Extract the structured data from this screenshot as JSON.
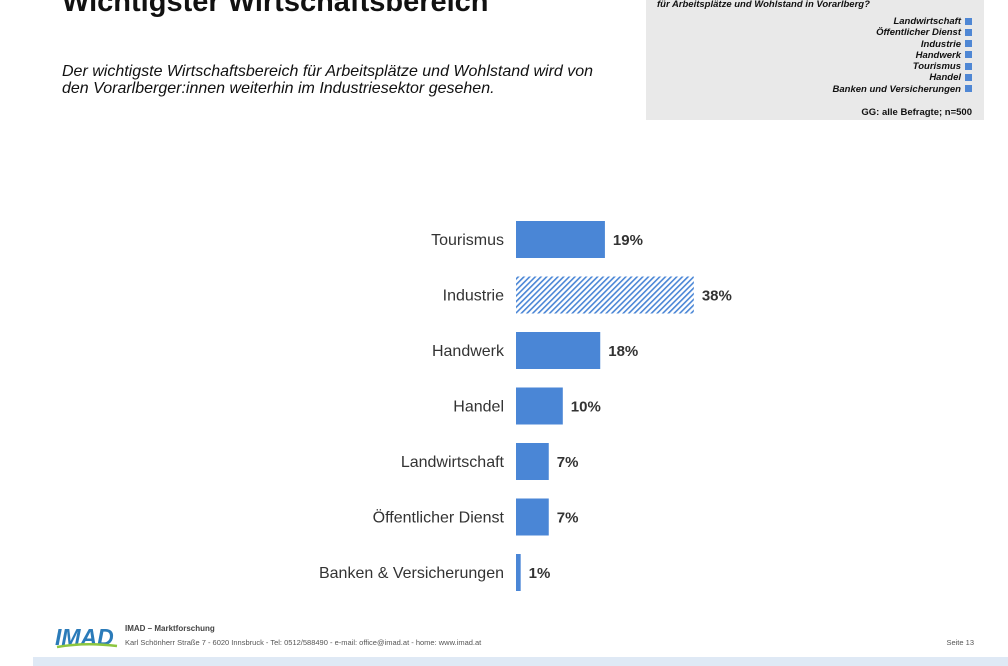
{
  "page": {
    "title": "Wichtigster Wirtschaftsbereich",
    "subtitle": "Der wichtigste Wirtschaftsbereich für Arbeitsplätze und Wohlstand wird von den Vorarlberger:innen weiterhin im Industriesektor gesehen."
  },
  "question_box": {
    "question": "für Arbeitsplätze und Wohlstand in Vorarlberg?",
    "legend": [
      "Landwirtschaft",
      "Öffentlicher Dienst",
      "Industrie",
      "Handwerk",
      "Tourismus",
      "Handel",
      "Banken und Versicherungen"
    ],
    "base": "GG: alle Befragte; n=500"
  },
  "chart_data": {
    "type": "bar",
    "orientation": "horizontal",
    "categories": [
      "Tourismus",
      "Industrie",
      "Handwerk",
      "Handel",
      "Landwirtschaft",
      "Öffentlicher Dienst",
      "Banken & Versicherungen"
    ],
    "values": [
      19,
      38,
      18,
      10,
      7,
      7,
      1
    ],
    "value_labels": [
      "19%",
      "38%",
      "18%",
      "10%",
      "7%",
      "7%",
      "1%"
    ],
    "unit": "%",
    "highlight_category": "Industrie",
    "colors": {
      "bar": "#4a86d6",
      "highlight_hatch": "#4a86d6",
      "highlight_bg": "#ffffff"
    },
    "grid": false,
    "legend": "none"
  },
  "footer": {
    "logo_text": "IMAD",
    "company": "IMAD – Marktforschung",
    "address": "Karl Schönherr Straße  7 - 6020 Innsbruck  - Tel: 0512/588490 - e-mail: office@imad.at  - home: www.imad.at",
    "page": "Seite 13"
  }
}
